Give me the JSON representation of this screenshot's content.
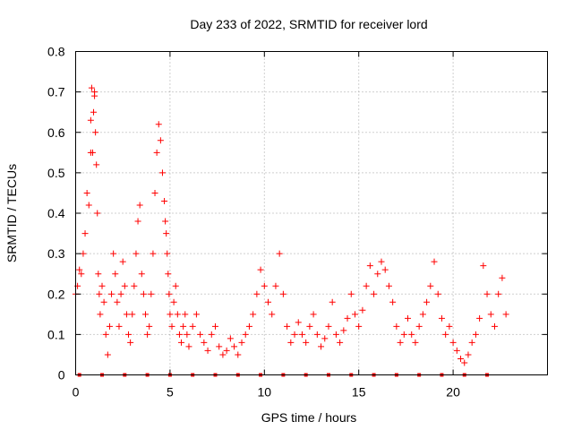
{
  "chart_data": {
    "type": "scatter",
    "title": "Day 233 of 2022, SRMTID for receiver lord",
    "xlabel": "GPS time / hours",
    "ylabel": "SRMTID / TECUs",
    "xlim": [
      0,
      25
    ],
    "ylim": [
      0,
      0.8
    ],
    "x_ticks": [
      0,
      5,
      10,
      15,
      20
    ],
    "x_tick_labels": [
      "0",
      "5",
      "10",
      "15",
      "20"
    ],
    "y_ticks": [
      0,
      0.1,
      0.2,
      0.3,
      0.4,
      0.5,
      0.6,
      0.7,
      0.8
    ],
    "y_tick_labels": [
      "0",
      "0.1",
      "0.2",
      "0.3",
      "0.4",
      "0.5",
      "0.6",
      "0.7",
      "0.8"
    ],
    "grid": true,
    "marker": "plus",
    "color": "#ff0000",
    "series": [
      {
        "name": "SRMTID",
        "x": [
          0.0,
          0.1,
          0.2,
          0.3,
          0.4,
          0.5,
          0.6,
          0.7,
          0.8,
          0.8,
          0.85,
          0.9,
          0.95,
          1.0,
          1.0,
          1.05,
          1.1,
          1.15,
          1.2,
          1.25,
          1.3,
          1.4,
          1.5,
          1.6,
          1.7,
          1.8,
          1.9,
          2.0,
          2.1,
          2.2,
          2.3,
          2.4,
          2.5,
          2.6,
          2.7,
          2.8,
          2.9,
          3.0,
          3.1,
          3.2,
          3.3,
          3.4,
          3.5,
          3.6,
          3.7,
          3.8,
          3.9,
          4.0,
          4.1,
          4.2,
          4.3,
          4.4,
          4.5,
          4.6,
          4.7,
          4.75,
          4.8,
          4.85,
          4.9,
          4.95,
          5.0,
          5.1,
          5.2,
          5.3,
          5.4,
          5.5,
          5.6,
          5.7,
          5.8,
          5.9,
          6.0,
          6.2,
          6.4,
          6.6,
          6.8,
          7.0,
          7.2,
          7.4,
          7.6,
          7.8,
          8.0,
          8.2,
          8.4,
          8.6,
          8.8,
          9.0,
          9.2,
          9.4,
          9.6,
          9.8,
          10.0,
          10.2,
          10.4,
          10.6,
          10.8,
          11.0,
          11.2,
          11.4,
          11.6,
          11.8,
          12.0,
          12.2,
          12.4,
          12.6,
          12.8,
          13.0,
          13.2,
          13.4,
          13.6,
          13.8,
          14.0,
          14.2,
          14.4,
          14.6,
          14.8,
          15.0,
          15.2,
          15.4,
          15.6,
          15.8,
          16.0,
          16.2,
          16.4,
          16.6,
          16.8,
          17.0,
          17.2,
          17.4,
          17.6,
          17.8,
          18.0,
          18.2,
          18.4,
          18.6,
          18.8,
          19.0,
          19.2,
          19.4,
          19.6,
          19.8,
          20.0,
          20.2,
          20.4,
          20.6,
          20.8,
          21.0,
          21.2,
          21.4,
          21.6,
          21.8,
          22.0,
          22.2,
          22.4,
          22.6,
          22.8
        ],
        "y": [
          0.2,
          0.22,
          0.26,
          0.25,
          0.3,
          0.35,
          0.45,
          0.42,
          0.55,
          0.63,
          0.71,
          0.55,
          0.65,
          0.69,
          0.7,
          0.6,
          0.52,
          0.4,
          0.25,
          0.2,
          0.15,
          0.22,
          0.18,
          0.1,
          0.05,
          0.12,
          0.2,
          0.3,
          0.25,
          0.18,
          0.12,
          0.2,
          0.28,
          0.22,
          0.15,
          0.1,
          0.08,
          0.15,
          0.22,
          0.3,
          0.38,
          0.42,
          0.25,
          0.2,
          0.15,
          0.1,
          0.12,
          0.2,
          0.3,
          0.45,
          0.55,
          0.62,
          0.58,
          0.5,
          0.43,
          0.38,
          0.35,
          0.3,
          0.25,
          0.2,
          0.15,
          0.12,
          0.18,
          0.22,
          0.15,
          0.1,
          0.08,
          0.12,
          0.15,
          0.1,
          0.07,
          0.12,
          0.15,
          0.1,
          0.08,
          0.06,
          0.1,
          0.12,
          0.07,
          0.05,
          0.06,
          0.09,
          0.07,
          0.05,
          0.08,
          0.1,
          0.12,
          0.15,
          0.2,
          0.26,
          0.22,
          0.18,
          0.15,
          0.22,
          0.3,
          0.2,
          0.12,
          0.08,
          0.1,
          0.13,
          0.1,
          0.08,
          0.12,
          0.15,
          0.1,
          0.07,
          0.09,
          0.12,
          0.18,
          0.1,
          0.08,
          0.11,
          0.14,
          0.2,
          0.15,
          0.12,
          0.16,
          0.22,
          0.27,
          0.2,
          0.25,
          0.28,
          0.26,
          0.22,
          0.18,
          0.12,
          0.08,
          0.1,
          0.14,
          0.1,
          0.08,
          0.12,
          0.15,
          0.18,
          0.22,
          0.28,
          0.2,
          0.14,
          0.1,
          0.12,
          0.08,
          0.06,
          0.04,
          0.03,
          0.05,
          0.08,
          0.1,
          0.14,
          0.27,
          0.2,
          0.15,
          0.12,
          0.2,
          0.24,
          0.15
        ],
        "zero_markers_x": [
          0.2,
          1.4,
          2.6,
          3.8,
          5.0,
          6.2,
          7.4,
          8.6,
          9.8,
          11.0,
          12.2,
          13.4,
          14.6,
          15.8,
          17.0,
          18.2,
          19.4,
          20.6,
          21.8
        ]
      }
    ]
  }
}
